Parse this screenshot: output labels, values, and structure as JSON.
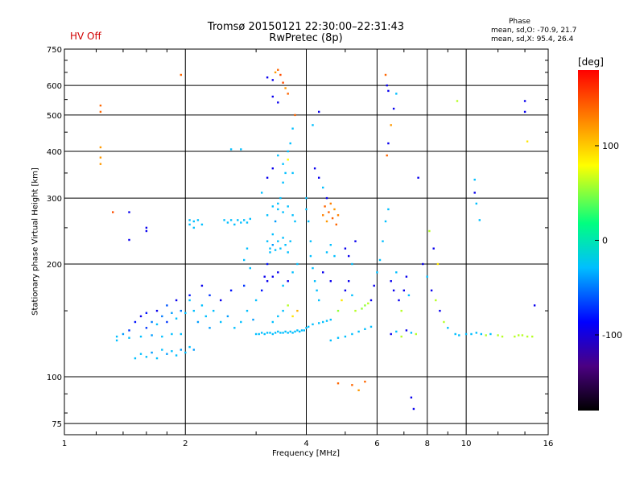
{
  "header": {
    "title": "Tromsø 20150121 22:30:00–22:31:43",
    "subtitle": "RwPretec (8p)",
    "hv_status": "HV Off",
    "phase_heading": "Phase",
    "phase_o": "mean, sd,O: -70.9, 21.7",
    "phase_x": "mean, sd,X:  95.4, 26.4"
  },
  "colors": {
    "hv_status": "#d00000",
    "grid": "#000000",
    "colormap": [
      "#000000",
      "#4b0082",
      "#0000ff",
      "#00bfff",
      "#00ff80",
      "#ffff00",
      "#ff8000",
      "#ff0000"
    ]
  },
  "chart_data": {
    "type": "scatter",
    "xlabel": "Frequency [MHz]",
    "ylabel": "Stationary phase Virtual Height [km]",
    "x_scale": "log",
    "y_scale": "log",
    "xlim": [
      1,
      16
    ],
    "ylim": [
      70,
      750
    ],
    "x_ticks": [
      {
        "value": 1,
        "label": "1"
      },
      {
        "value": 2,
        "label": "2"
      },
      {
        "value": 4,
        "label": "4"
      },
      {
        "value": 6,
        "label": "6"
      },
      {
        "value": 8,
        "label": "8"
      },
      {
        "value": 10,
        "label": "10"
      },
      {
        "value": 16,
        "label": "16"
      }
    ],
    "y_ticks": [
      {
        "value": 75,
        "label": "75"
      },
      {
        "value": 100,
        "label": "100"
      },
      {
        "value": 200,
        "label": "200"
      },
      {
        "value": 300,
        "label": "300"
      },
      {
        "value": 400,
        "label": "400"
      },
      {
        "value": 500,
        "label": "500"
      },
      {
        "value": 600,
        "label": "600"
      },
      {
        "value": 750,
        "label": "750"
      }
    ],
    "grid": true,
    "colorbar": {
      "unit": "[deg]",
      "range": [
        -180,
        180
      ],
      "ticks": [
        {
          "value": 100,
          "label": "100"
        },
        {
          "value": 0,
          "label": "0"
        },
        {
          "value": -100,
          "label": "-100"
        }
      ]
    },
    "points": [
      [
        1.23,
        530,
        140
      ],
      [
        1.23,
        510,
        140
      ],
      [
        1.23,
        410,
        120
      ],
      [
        1.23,
        385,
        120
      ],
      [
        1.23,
        370,
        120
      ],
      [
        1.32,
        275,
        150
      ],
      [
        1.45,
        275,
        -100
      ],
      [
        1.45,
        232,
        -100
      ],
      [
        1.6,
        250,
        -100
      ],
      [
        1.6,
        245,
        -100
      ],
      [
        1.95,
        640,
        140
      ],
      [
        1.35,
        128,
        -40
      ],
      [
        1.35,
        125,
        -40
      ],
      [
        1.4,
        130,
        -50
      ],
      [
        1.45,
        133,
        -80
      ],
      [
        1.5,
        140,
        -90
      ],
      [
        1.55,
        145,
        -100
      ],
      [
        1.6,
        148,
        -90
      ],
      [
        1.6,
        135,
        -80
      ],
      [
        1.65,
        140,
        -60
      ],
      [
        1.7,
        150,
        -100
      ],
      [
        1.7,
        138,
        -40
      ],
      [
        1.75,
        145,
        -60
      ],
      [
        1.8,
        155,
        -70
      ],
      [
        1.8,
        140,
        -80
      ],
      [
        1.85,
        148,
        -50
      ],
      [
        1.9,
        160,
        -100
      ],
      [
        1.9,
        143,
        -40
      ],
      [
        1.95,
        150,
        -60
      ],
      [
        2.0,
        148,
        -40
      ],
      [
        1.5,
        112,
        -40
      ],
      [
        1.55,
        115,
        -40
      ],
      [
        1.6,
        113,
        -40
      ],
      [
        1.65,
        116,
        -50
      ],
      [
        1.7,
        112,
        -40
      ],
      [
        1.75,
        118,
        -40
      ],
      [
        1.8,
        115,
        -50
      ],
      [
        1.85,
        117,
        -40
      ],
      [
        1.9,
        114,
        -40
      ],
      [
        1.95,
        118,
        -50
      ],
      [
        2.0,
        116,
        -40
      ],
      [
        2.05,
        120,
        -40
      ],
      [
        2.1,
        118,
        -50
      ],
      [
        1.45,
        127,
        -40
      ],
      [
        1.55,
        128,
        -40
      ],
      [
        1.65,
        129,
        -50
      ],
      [
        1.75,
        128,
        -40
      ],
      [
        1.85,
        130,
        -40
      ],
      [
        1.95,
        130,
        -40
      ],
      [
        2.05,
        160,
        -40
      ],
      [
        2.1,
        150,
        -40
      ],
      [
        2.15,
        140,
        -50
      ],
      [
        2.2,
        155,
        -40
      ],
      [
        2.25,
        145,
        -40
      ],
      [
        2.3,
        135,
        -50
      ],
      [
        2.35,
        150,
        -40
      ],
      [
        2.45,
        140,
        -40
      ],
      [
        2.55,
        145,
        -50
      ],
      [
        2.65,
        135,
        -40
      ],
      [
        2.75,
        140,
        -40
      ],
      [
        2.85,
        150,
        -40
      ],
      [
        2.95,
        142,
        -50
      ],
      [
        2.05,
        165,
        -90
      ],
      [
        2.2,
        175,
        -100
      ],
      [
        2.3,
        165,
        -80
      ],
      [
        2.45,
        160,
        -100
      ],
      [
        2.6,
        170,
        -90
      ],
      [
        2.8,
        175,
        -80
      ],
      [
        2.05,
        262,
        -40
      ],
      [
        2.05,
        255,
        -40
      ],
      [
        2.1,
        260,
        -40
      ],
      [
        2.1,
        250,
        -40
      ],
      [
        2.15,
        262,
        -40
      ],
      [
        2.2,
        255,
        -40
      ],
      [
        2.5,
        262,
        -40
      ],
      [
        2.55,
        258,
        -40
      ],
      [
        2.6,
        262,
        -40
      ],
      [
        2.65,
        255,
        -40
      ],
      [
        2.7,
        262,
        -40
      ],
      [
        2.75,
        258,
        -40
      ],
      [
        2.8,
        262,
        -40
      ],
      [
        2.85,
        258,
        -40
      ],
      [
        2.9,
        264,
        -40
      ],
      [
        2.6,
        405,
        -40
      ],
      [
        2.75,
        405,
        -40
      ],
      [
        2.8,
        205,
        -40
      ],
      [
        2.85,
        220,
        -40
      ],
      [
        2.9,
        195,
        -40
      ],
      [
        3.0,
        130,
        -40
      ],
      [
        3.05,
        130,
        -40
      ],
      [
        3.1,
        131,
        -40
      ],
      [
        3.15,
        130,
        -40
      ],
      [
        3.2,
        131,
        -40
      ],
      [
        3.25,
        131,
        -40
      ],
      [
        3.3,
        130,
        -40
      ],
      [
        3.35,
        131,
        -40
      ],
      [
        3.4,
        132,
        -40
      ],
      [
        3.45,
        131,
        -40
      ],
      [
        3.5,
        131,
        -40
      ],
      [
        3.55,
        132,
        -40
      ],
      [
        3.6,
        131,
        -40
      ],
      [
        3.65,
        132,
        -40
      ],
      [
        3.7,
        131,
        -40
      ],
      [
        3.75,
        132,
        -40
      ],
      [
        3.8,
        133,
        -40
      ],
      [
        3.85,
        132,
        -40
      ],
      [
        3.9,
        133,
        -40
      ],
      [
        3.95,
        133,
        -40
      ],
      [
        3.0,
        160,
        -40
      ],
      [
        3.1,
        170,
        -90
      ],
      [
        3.15,
        185,
        -100
      ],
      [
        3.2,
        200,
        -90
      ],
      [
        3.25,
        220,
        -40
      ],
      [
        3.3,
        240,
        -40
      ],
      [
        3.35,
        260,
        -50
      ],
      [
        3.4,
        280,
        -40
      ],
      [
        3.45,
        300,
        -40
      ],
      [
        3.5,
        330,
        -40
      ],
      [
        3.55,
        350,
        -40
      ],
      [
        3.6,
        380,
        80
      ],
      [
        3.65,
        420,
        -40
      ],
      [
        3.7,
        460,
        -40
      ],
      [
        3.75,
        500,
        140
      ],
      [
        3.2,
        630,
        -100
      ],
      [
        3.3,
        620,
        -100
      ],
      [
        3.35,
        650,
        120
      ],
      [
        3.4,
        660,
        140
      ],
      [
        3.45,
        640,
        150
      ],
      [
        3.5,
        610,
        150
      ],
      [
        3.55,
        590,
        120
      ],
      [
        3.6,
        570,
        140
      ],
      [
        3.3,
        560,
        -100
      ],
      [
        3.4,
        540,
        -100
      ],
      [
        3.2,
        230,
        -40
      ],
      [
        3.25,
        215,
        -40
      ],
      [
        3.3,
        225,
        -50
      ],
      [
        3.35,
        218,
        -40
      ],
      [
        3.4,
        230,
        -40
      ],
      [
        3.45,
        220,
        -40
      ],
      [
        3.5,
        235,
        -40
      ],
      [
        3.55,
        225,
        -40
      ],
      [
        3.6,
        215,
        -40
      ],
      [
        3.65,
        230,
        -40
      ],
      [
        3.2,
        270,
        -40
      ],
      [
        3.3,
        285,
        -40
      ],
      [
        3.4,
        290,
        -40
      ],
      [
        3.5,
        275,
        -40
      ],
      [
        3.6,
        285,
        -40
      ],
      [
        3.7,
        270,
        -40
      ],
      [
        3.75,
        260,
        -40
      ],
      [
        3.2,
        180,
        -100
      ],
      [
        3.3,
        185,
        -100
      ],
      [
        3.4,
        190,
        -100
      ],
      [
        3.5,
        175,
        -40
      ],
      [
        3.6,
        180,
        -100
      ],
      [
        3.7,
        190,
        -40
      ],
      [
        3.8,
        200,
        -40
      ],
      [
        3.1,
        310,
        -40
      ],
      [
        3.2,
        340,
        -100
      ],
      [
        3.3,
        360,
        -100
      ],
      [
        3.4,
        390,
        -40
      ],
      [
        3.5,
        370,
        -40
      ],
      [
        3.6,
        400,
        -40
      ],
      [
        3.7,
        350,
        -40
      ],
      [
        3.3,
        140,
        -40
      ],
      [
        3.4,
        145,
        -40
      ],
      [
        3.5,
        150,
        -40
      ],
      [
        3.6,
        155,
        60
      ],
      [
        3.7,
        145,
        90
      ],
      [
        3.8,
        150,
        110
      ],
      [
        4.0,
        300,
        -40
      ],
      [
        4.0,
        280,
        -40
      ],
      [
        4.05,
        260,
        -40
      ],
      [
        4.1,
        230,
        -40
      ],
      [
        4.1,
        210,
        -40
      ],
      [
        4.15,
        195,
        -40
      ],
      [
        4.2,
        180,
        -40
      ],
      [
        4.25,
        170,
        -40
      ],
      [
        4.3,
        160,
        -40
      ],
      [
        4.0,
        135,
        -40
      ],
      [
        4.05,
        136,
        -40
      ],
      [
        4.15,
        138,
        -40
      ],
      [
        4.3,
        139,
        -40
      ],
      [
        4.4,
        140,
        -40
      ],
      [
        4.5,
        141,
        -40
      ],
      [
        4.6,
        142,
        -40
      ],
      [
        4.4,
        270,
        130
      ],
      [
        4.45,
        285,
        140
      ],
      [
        4.5,
        260,
        120
      ],
      [
        4.55,
        275,
        140
      ],
      [
        4.6,
        290,
        130
      ],
      [
        4.65,
        265,
        140
      ],
      [
        4.7,
        280,
        120
      ],
      [
        4.75,
        255,
        140
      ],
      [
        4.8,
        270,
        130
      ],
      [
        4.2,
        360,
        -100
      ],
      [
        4.3,
        340,
        -100
      ],
      [
        4.4,
        320,
        -40
      ],
      [
        4.5,
        300,
        -100
      ],
      [
        4.3,
        510,
        -100
      ],
      [
        4.15,
        470,
        -40
      ],
      [
        4.5,
        215,
        -40
      ],
      [
        4.6,
        225,
        -40
      ],
      [
        4.7,
        210,
        -40
      ],
      [
        4.4,
        190,
        -100
      ],
      [
        4.6,
        180,
        -100
      ],
      [
        4.8,
        150,
        50
      ],
      [
        4.9,
        160,
        90
      ],
      [
        5.0,
        170,
        -100
      ],
      [
        5.1,
        180,
        -100
      ],
      [
        5.2,
        165,
        -40
      ],
      [
        5.3,
        150,
        60
      ],
      [
        4.6,
        125,
        -40
      ],
      [
        4.8,
        127,
        -40
      ],
      [
        5.0,
        128,
        -40
      ],
      [
        5.2,
        130,
        -40
      ],
      [
        5.4,
        132,
        -40
      ],
      [
        5.6,
        134,
        -40
      ],
      [
        5.8,
        136,
        -40
      ],
      [
        5.0,
        220,
        -100
      ],
      [
        5.1,
        210,
        -100
      ],
      [
        5.2,
        200,
        -40
      ],
      [
        5.3,
        230,
        -100
      ],
      [
        5.5,
        152,
        50
      ],
      [
        5.6,
        155,
        50
      ],
      [
        5.7,
        157,
        60
      ],
      [
        4.8,
        96,
        140
      ],
      [
        5.2,
        95,
        140
      ],
      [
        5.4,
        92,
        120
      ],
      [
        5.6,
        97,
        140
      ],
      [
        5.8,
        160,
        -100
      ],
      [
        5.9,
        175,
        -100
      ],
      [
        6.0,
        190,
        -40
      ],
      [
        6.1,
        205,
        -40
      ],
      [
        6.2,
        230,
        -40
      ],
      [
        6.3,
        260,
        -40
      ],
      [
        6.4,
        280,
        -40
      ],
      [
        6.3,
        640,
        140
      ],
      [
        6.35,
        600,
        -100
      ],
      [
        6.4,
        580,
        -100
      ],
      [
        6.6,
        520,
        -100
      ],
      [
        6.5,
        470,
        120
      ],
      [
        6.4,
        420,
        -100
      ],
      [
        6.35,
        390,
        140
      ],
      [
        6.7,
        570,
        -40
      ],
      [
        6.5,
        180,
        -100
      ],
      [
        6.6,
        170,
        -100
      ],
      [
        6.7,
        190,
        -40
      ],
      [
        6.8,
        160,
        -100
      ],
      [
        6.9,
        150,
        60
      ],
      [
        7.0,
        170,
        -100
      ],
      [
        7.1,
        185,
        -100
      ],
      [
        7.2,
        165,
        -40
      ],
      [
        6.5,
        130,
        -100
      ],
      [
        6.7,
        132,
        -40
      ],
      [
        6.9,
        128,
        60
      ],
      [
        7.1,
        133,
        -100
      ],
      [
        7.3,
        131,
        -40
      ],
      [
        7.5,
        130,
        60
      ],
      [
        7.3,
        88,
        -100
      ],
      [
        7.4,
        82,
        -100
      ],
      [
        7.6,
        340,
        -100
      ],
      [
        7.8,
        200,
        -100
      ],
      [
        8.0,
        185,
        -40
      ],
      [
        8.2,
        170,
        -100
      ],
      [
        8.4,
        160,
        60
      ],
      [
        8.6,
        150,
        -100
      ],
      [
        8.8,
        140,
        60
      ],
      [
        9.0,
        135,
        -40
      ],
      [
        8.1,
        245,
        60
      ],
      [
        8.3,
        220,
        -100
      ],
      [
        8.5,
        200,
        90
      ],
      [
        9.5,
        545,
        60
      ],
      [
        9.4,
        130,
        -40
      ],
      [
        9.6,
        129,
        -40
      ],
      [
        10.5,
        336,
        -40
      ],
      [
        10.5,
        310,
        -100
      ],
      [
        10.6,
        290,
        -40
      ],
      [
        10.8,
        262,
        -40
      ],
      [
        10.0,
        130,
        -40
      ],
      [
        10.3,
        130,
        -40
      ],
      [
        10.6,
        131,
        -40
      ],
      [
        10.9,
        130,
        -40
      ],
      [
        11.2,
        129,
        60
      ],
      [
        11.5,
        130,
        -40
      ],
      [
        12.0,
        129,
        60
      ],
      [
        12.3,
        128,
        60
      ],
      [
        13.2,
        128,
        60
      ],
      [
        13.5,
        129,
        60
      ],
      [
        13.8,
        129,
        60
      ],
      [
        14.2,
        128,
        60
      ],
      [
        14.6,
        128,
        60
      ],
      [
        14.0,
        545,
        -100
      ],
      [
        14.0,
        510,
        -100
      ],
      [
        14.2,
        425,
        90
      ],
      [
        14.8,
        155,
        -100
      ]
    ]
  }
}
